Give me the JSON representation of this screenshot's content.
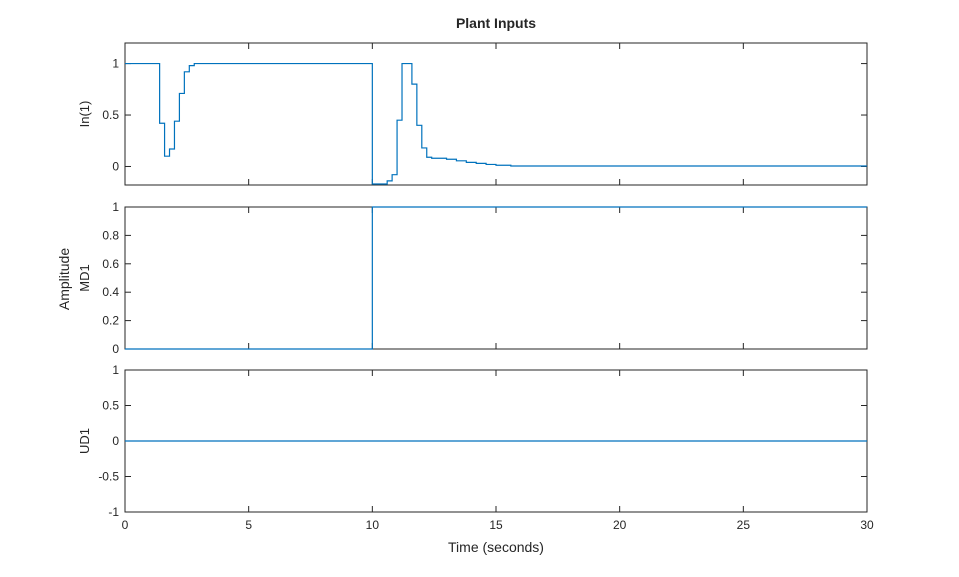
{
  "figure": {
    "title": "Plant Inputs",
    "xlabel": "Time (seconds)",
    "shared_ylabel": "Amplitude"
  },
  "colors": {
    "line": "#0072BD",
    "axes": "#262626",
    "background": "#ffffff"
  },
  "chart_data": [
    {
      "type": "line",
      "step": true,
      "ylabel": "In(1)",
      "xlim": [
        0,
        30
      ],
      "ylim": [
        -0.18,
        1.2
      ],
      "yticks": [
        0,
        0.5,
        1
      ],
      "ytick_labels": [
        "0",
        "0.5",
        "1"
      ],
      "xticks": [
        0,
        5,
        10,
        15,
        20,
        25,
        30
      ],
      "grid": false,
      "series": [
        {
          "x": [
            0,
            1.4,
            1.6,
            1.8,
            2.0,
            2.2,
            2.4,
            2.6,
            2.8,
            10.0,
            10.6,
            10.8,
            11.0,
            11.2,
            11.6,
            11.8,
            12.0,
            12.2,
            12.4,
            13.0,
            13.4,
            13.8,
            14.2,
            14.6,
            15.0,
            15.6,
            30
          ],
          "y": [
            1.0,
            0.42,
            0.1,
            0.17,
            0.44,
            0.71,
            0.92,
            0.98,
            1.0,
            -0.17,
            -0.14,
            -0.08,
            0.45,
            1.0,
            0.8,
            0.4,
            0.18,
            0.09,
            0.08,
            0.07,
            0.055,
            0.04,
            0.03,
            0.02,
            0.012,
            0.005,
            0.005
          ]
        }
      ]
    },
    {
      "type": "line",
      "step": true,
      "ylabel": "MD1",
      "xlim": [
        0,
        30
      ],
      "ylim": [
        0,
        1
      ],
      "yticks": [
        0,
        0.2,
        0.4,
        0.6,
        0.8,
        1
      ],
      "ytick_labels": [
        "0",
        "0.2",
        "0.4",
        "0.6",
        "0.8",
        "1"
      ],
      "xticks": [
        0,
        5,
        10,
        15,
        20,
        25,
        30
      ],
      "grid": false,
      "series": [
        {
          "x": [
            0,
            10,
            30
          ],
          "y": [
            0,
            1,
            1
          ]
        }
      ]
    },
    {
      "type": "line",
      "step": true,
      "ylabel": "UD1",
      "xlim": [
        0,
        30
      ],
      "ylim": [
        -1,
        1
      ],
      "yticks": [
        -1,
        -0.5,
        0,
        0.5,
        1
      ],
      "ytick_labels": [
        "-1",
        "-0.5",
        "0",
        "0.5",
        "1"
      ],
      "xticks": [
        0,
        5,
        10,
        15,
        20,
        25,
        30
      ],
      "xtick_labels": [
        "0",
        "5",
        "10",
        "15",
        "20",
        "25",
        "30"
      ],
      "grid": false,
      "series": [
        {
          "x": [
            0,
            30
          ],
          "y": [
            0,
            0
          ]
        }
      ]
    }
  ]
}
